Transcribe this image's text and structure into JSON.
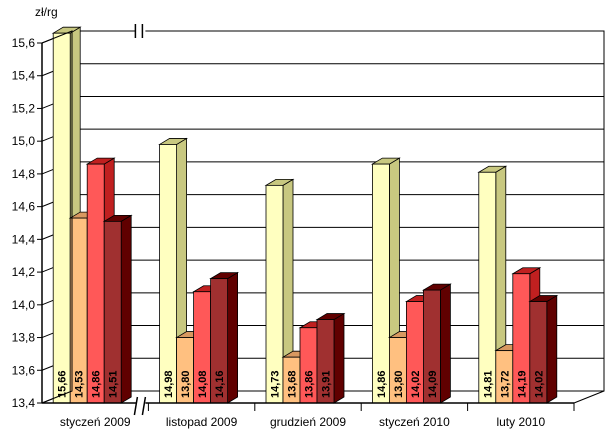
{
  "chart_data": {
    "type": "bar",
    "title": "",
    "ylabel": "zł/rg",
    "xlabel": "",
    "ylim": [
      13.4,
      15.6
    ],
    "yticks": [
      "13,4",
      "13,6",
      "13,8",
      "14,0",
      "14,2",
      "14,4",
      "14,6",
      "14,8",
      "15,0",
      "15,2",
      "15,4",
      "15,6"
    ],
    "ytick_values": [
      13.4,
      13.6,
      13.8,
      14.0,
      14.2,
      14.4,
      14.6,
      14.8,
      15.0,
      15.2,
      15.4,
      15.6
    ],
    "categories": [
      "styczeń 2009",
      "listopad 2009",
      "grudzień 2009",
      "styczeń 2010",
      "luty 2010"
    ],
    "series": [
      {
        "values": [
          15.66,
          14.98,
          14.73,
          14.86,
          14.81
        ],
        "labels": [
          "15,66",
          "14,98",
          "14,73",
          "14,86",
          "14,81"
        ],
        "color": "#FFFFC0",
        "side": "#C8C880"
      },
      {
        "values": [
          14.53,
          13.8,
          13.68,
          13.8,
          13.72
        ],
        "labels": [
          "14,53",
          "13,80",
          "13,68",
          "13,80",
          "13,72"
        ],
        "color": "#FFC080",
        "side": "#D89860"
      },
      {
        "values": [
          14.86,
          14.08,
          13.86,
          14.02,
          14.19
        ],
        "labels": [
          "14,86",
          "14,08",
          "13,86",
          "14,02",
          "14,19"
        ],
        "color": "#FF5858",
        "side": "#C02020"
      },
      {
        "values": [
          14.51,
          14.16,
          13.91,
          14.09,
          14.02
        ],
        "labels": [
          "14,51",
          "14,16",
          "13,91",
          "14,09",
          "14,02"
        ],
        "color": "#A03030",
        "side": "#600000"
      }
    ],
    "axis_break": true,
    "grid": true,
    "legend": "none"
  }
}
